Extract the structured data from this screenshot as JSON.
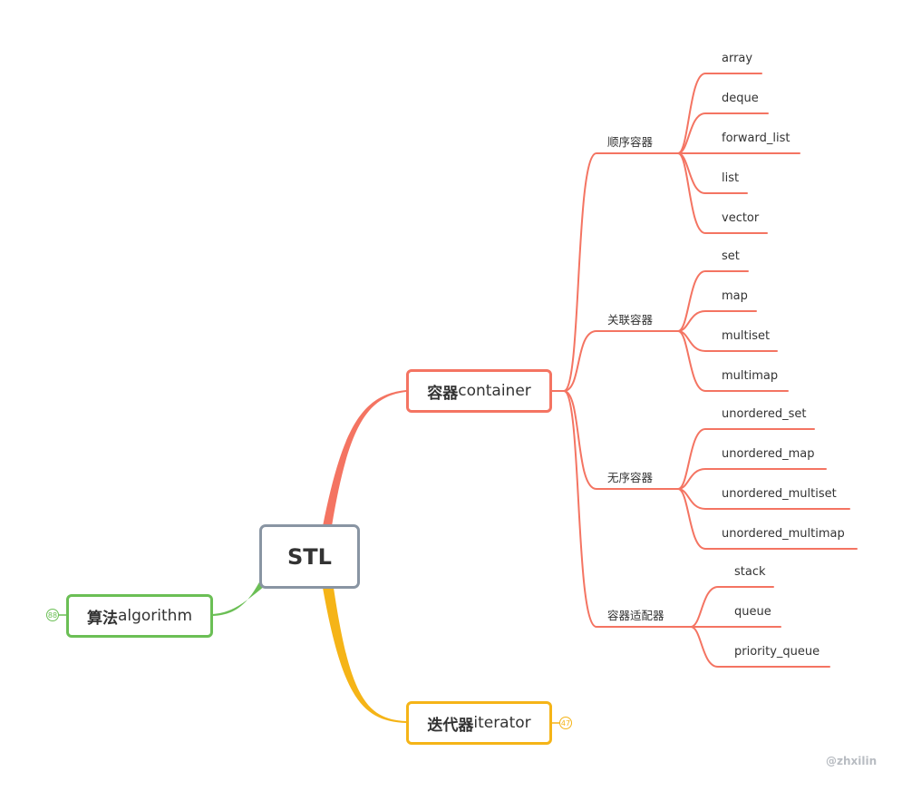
{
  "colors": {
    "container": "#f47462",
    "algorithm": "#6bbf55",
    "iterator": "#f5b417",
    "root_border": "#8995a3"
  },
  "root": {
    "label": "STL"
  },
  "container": {
    "label_cn": "容器",
    "label_en": "container",
    "groups": [
      {
        "label": "顺序容器",
        "items": [
          "array",
          "deque",
          "forward_list",
          "list",
          "vector"
        ]
      },
      {
        "label": "关联容器",
        "items": [
          "set",
          "map",
          "multiset",
          "multimap"
        ]
      },
      {
        "label": "无序容器",
        "items": [
          "unordered_set",
          "unordered_map",
          "unordered_multiset",
          "unordered_multimap"
        ]
      },
      {
        "label": "容器适配器",
        "items": [
          "stack",
          "queue",
          "priority_queue"
        ]
      }
    ]
  },
  "algorithm": {
    "label_cn": "算法",
    "label_en": "algorithm",
    "badge": "88"
  },
  "iterator": {
    "label_cn": "迭代器",
    "label_en": "iterator",
    "badge": "47"
  },
  "watermark": "@zhxilin"
}
